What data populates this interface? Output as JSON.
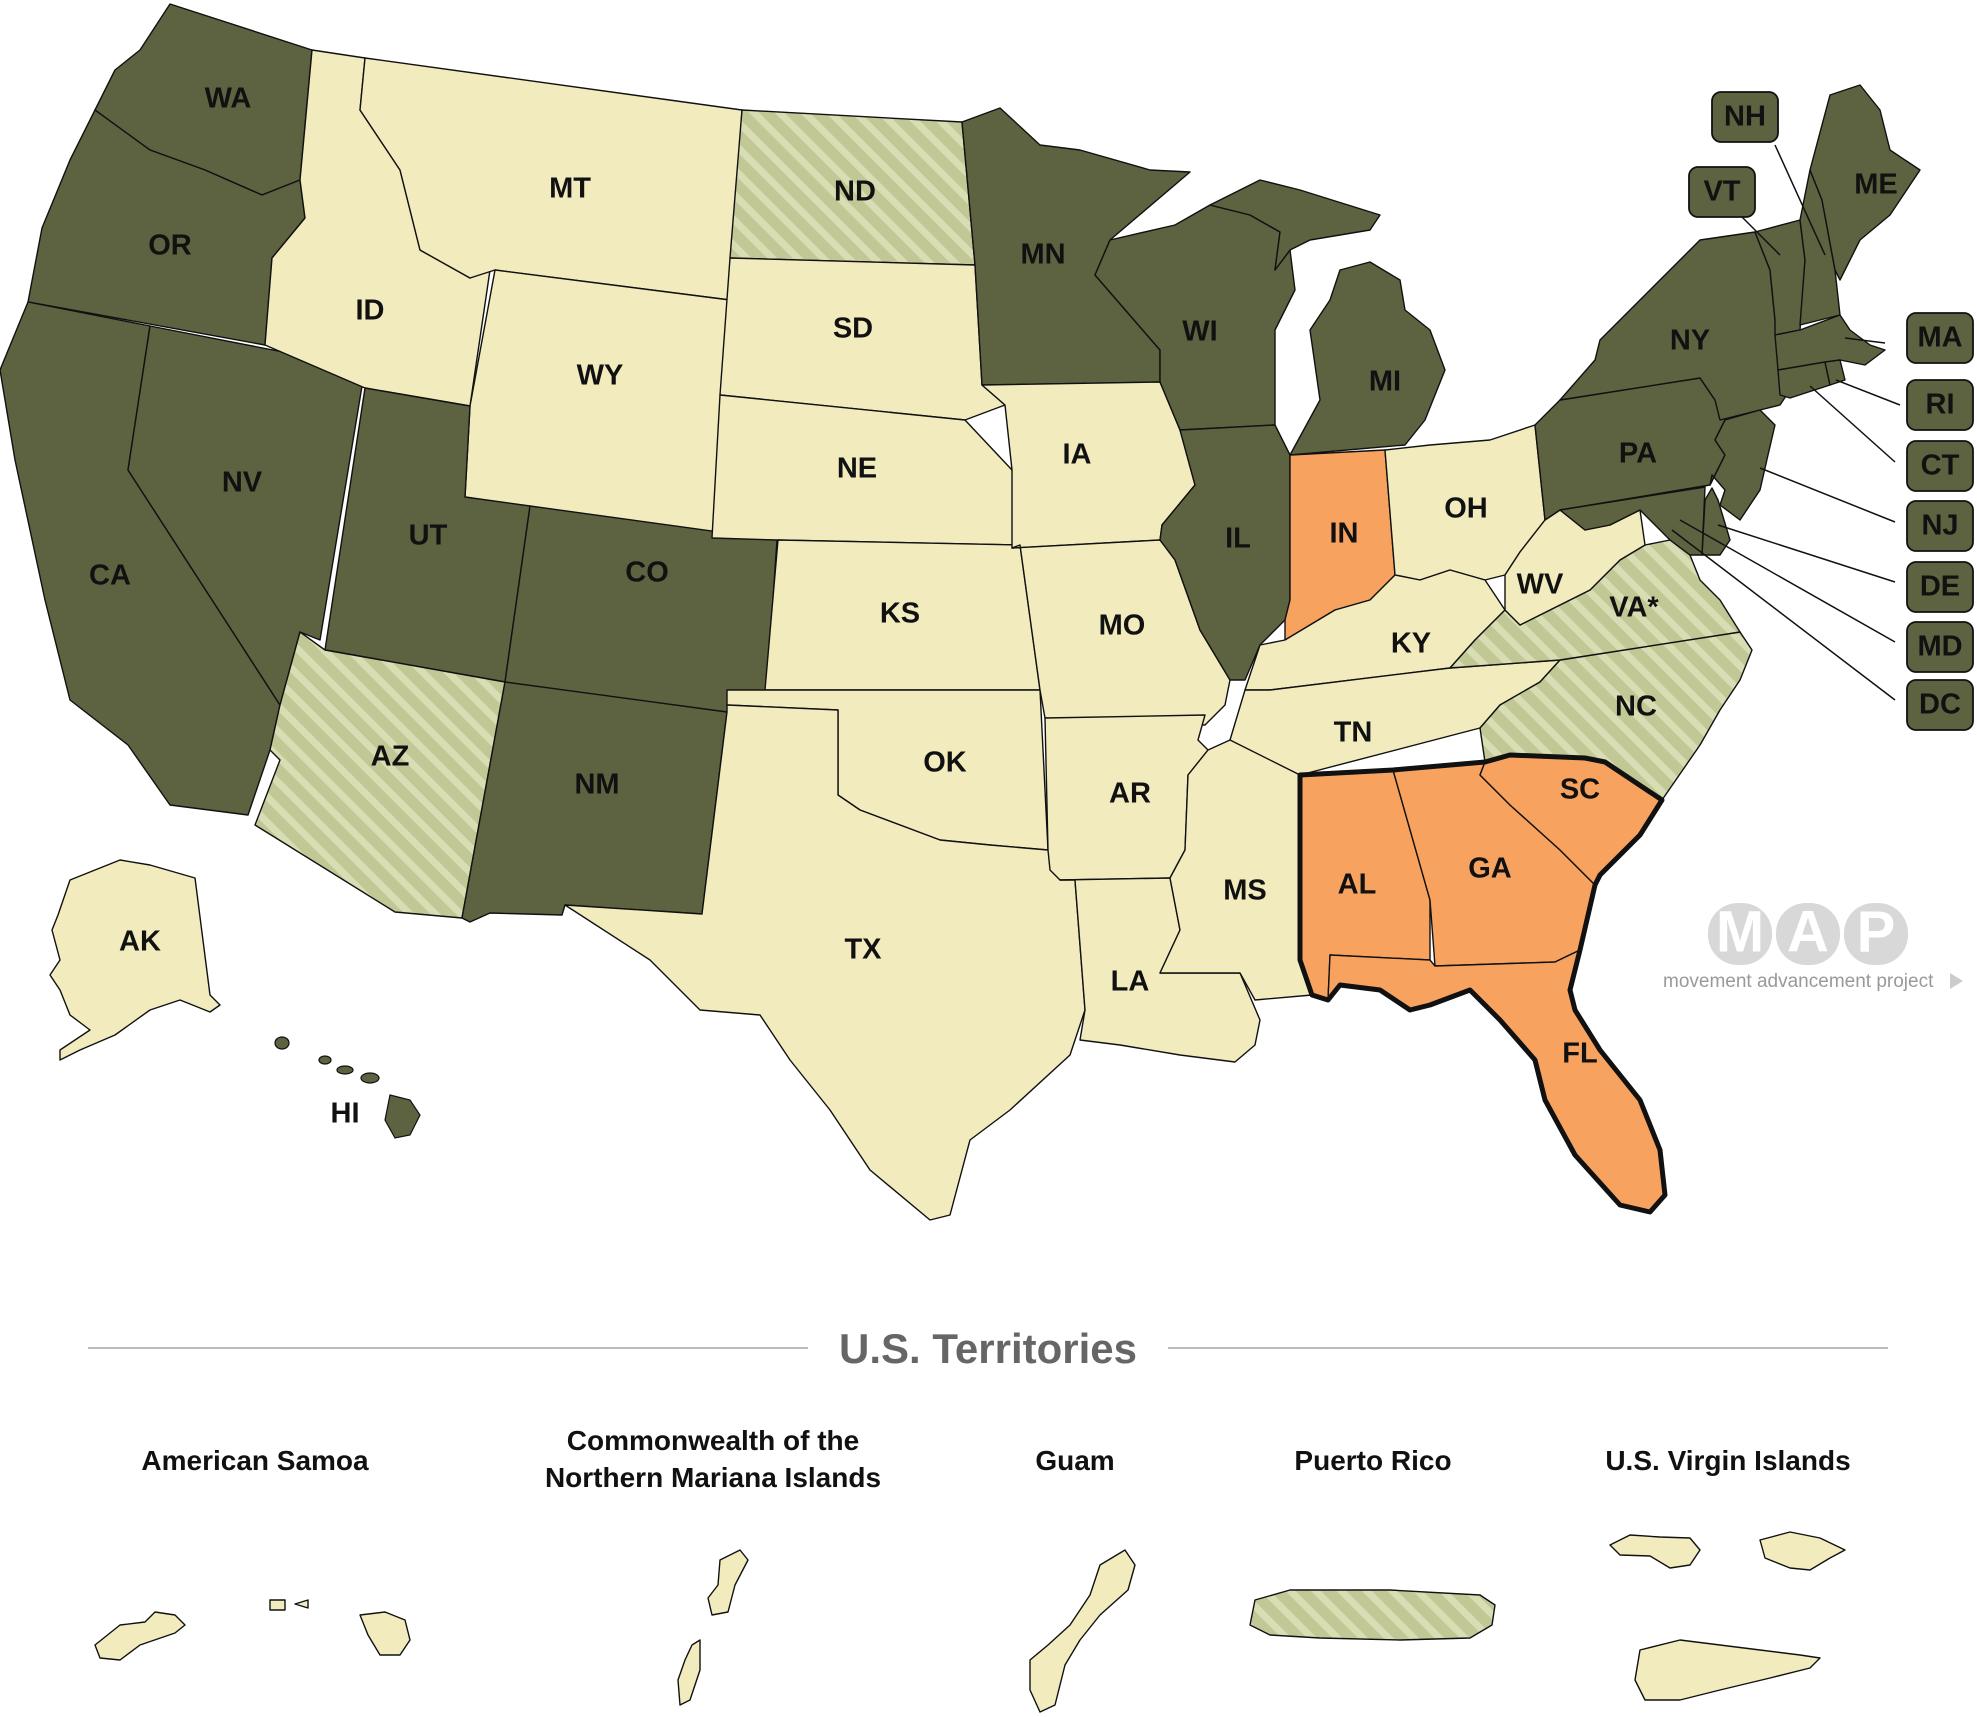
{
  "colors": {
    "dark": "#5d6240",
    "light": "#f1ebbd",
    "hatch_bg": "#c2c895",
    "hatch_stripe": "#d9ddb3",
    "orange": "#f7a35f",
    "border": "#111111",
    "section_line": "#bbbbbb"
  },
  "legend_categories": {
    "dark": "dark-olive",
    "light": "light-cream",
    "hatched": "hatched-olive",
    "orange": "orange"
  },
  "states": [
    {
      "code": "WA",
      "label": "WA",
      "category": "dark"
    },
    {
      "code": "OR",
      "label": "OR",
      "category": "dark"
    },
    {
      "code": "CA",
      "label": "CA",
      "category": "dark"
    },
    {
      "code": "NV",
      "label": "NV",
      "category": "dark"
    },
    {
      "code": "ID",
      "label": "ID",
      "category": "light"
    },
    {
      "code": "MT",
      "label": "MT",
      "category": "light"
    },
    {
      "code": "WY",
      "label": "WY",
      "category": "light"
    },
    {
      "code": "UT",
      "label": "UT",
      "category": "dark"
    },
    {
      "code": "CO",
      "label": "CO",
      "category": "dark"
    },
    {
      "code": "AZ",
      "label": "AZ",
      "category": "hatched"
    },
    {
      "code": "NM",
      "label": "NM",
      "category": "dark"
    },
    {
      "code": "ND",
      "label": "ND",
      "category": "hatched"
    },
    {
      "code": "SD",
      "label": "SD",
      "category": "light"
    },
    {
      "code": "NE",
      "label": "NE",
      "category": "light"
    },
    {
      "code": "KS",
      "label": "KS",
      "category": "light"
    },
    {
      "code": "OK",
      "label": "OK",
      "category": "light"
    },
    {
      "code": "TX",
      "label": "TX",
      "category": "light"
    },
    {
      "code": "MN",
      "label": "MN",
      "category": "dark"
    },
    {
      "code": "IA",
      "label": "IA",
      "category": "light"
    },
    {
      "code": "MO",
      "label": "MO",
      "category": "light"
    },
    {
      "code": "AR",
      "label": "AR",
      "category": "light"
    },
    {
      "code": "LA",
      "label": "LA",
      "category": "light"
    },
    {
      "code": "WI",
      "label": "WI",
      "category": "dark"
    },
    {
      "code": "IL",
      "label": "IL",
      "category": "dark"
    },
    {
      "code": "MI",
      "label": "MI",
      "category": "dark"
    },
    {
      "code": "IN",
      "label": "IN",
      "category": "orange"
    },
    {
      "code": "OH",
      "label": "OH",
      "category": "light"
    },
    {
      "code": "KY",
      "label": "KY",
      "category": "light"
    },
    {
      "code": "TN",
      "label": "TN",
      "category": "light"
    },
    {
      "code": "MS",
      "label": "MS",
      "category": "light"
    },
    {
      "code": "AL",
      "label": "AL",
      "category": "orange"
    },
    {
      "code": "GA",
      "label": "GA",
      "category": "orange"
    },
    {
      "code": "FL",
      "label": "FL",
      "category": "orange"
    },
    {
      "code": "SC",
      "label": "SC",
      "category": "orange"
    },
    {
      "code": "NC",
      "label": "NC",
      "category": "hatched"
    },
    {
      "code": "VA",
      "label": "VA*",
      "category": "hatched"
    },
    {
      "code": "WV",
      "label": "WV",
      "category": "light"
    },
    {
      "code": "PA",
      "label": "PA",
      "category": "dark"
    },
    {
      "code": "NY",
      "label": "NY",
      "category": "dark"
    },
    {
      "code": "ME",
      "label": "ME",
      "category": "dark"
    },
    {
      "code": "AK",
      "label": "AK",
      "category": "light"
    },
    {
      "code": "HI",
      "label": "HI",
      "category": "dark"
    }
  ],
  "callout_states": [
    {
      "code": "NH",
      "label": "NH",
      "category": "dark"
    },
    {
      "code": "VT",
      "label": "VT",
      "category": "dark"
    },
    {
      "code": "MA",
      "label": "MA",
      "category": "dark"
    },
    {
      "code": "RI",
      "label": "RI",
      "category": "dark"
    },
    {
      "code": "CT",
      "label": "CT",
      "category": "dark"
    },
    {
      "code": "NJ",
      "label": "NJ",
      "category": "dark"
    },
    {
      "code": "DE",
      "label": "DE",
      "category": "dark"
    },
    {
      "code": "MD",
      "label": "MD",
      "category": "dark"
    },
    {
      "code": "DC",
      "label": "DC",
      "category": "dark"
    }
  ],
  "logo": {
    "letters": [
      "M",
      "A",
      "P"
    ],
    "tagline": "movement advancement project",
    "arrow_icon": "play-triangle-icon"
  },
  "territories_section": {
    "title": "U.S. Territories",
    "items": [
      {
        "id": "american-samoa",
        "lines": [
          "American Samoa"
        ],
        "category": "light"
      },
      {
        "id": "cnmi",
        "lines": [
          "Commonwealth of the",
          "Northern Mariana Islands"
        ],
        "category": "light"
      },
      {
        "id": "guam",
        "lines": [
          "Guam"
        ],
        "category": "light"
      },
      {
        "id": "puerto-rico",
        "lines": [
          "Puerto Rico"
        ],
        "category": "hatched"
      },
      {
        "id": "usvi",
        "lines": [
          "U.S. Virgin Islands"
        ],
        "category": "light"
      }
    ]
  }
}
